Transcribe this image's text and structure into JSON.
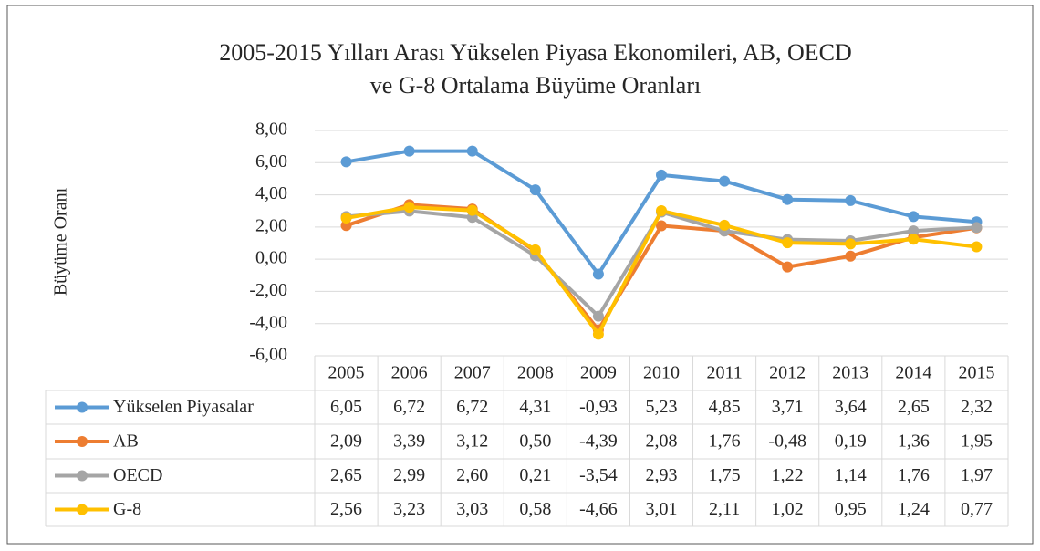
{
  "chart_data": {
    "type": "line",
    "title": "2005-2015 Yılları Arası Yükselen Piyasa Ekonomileri, AB, OECD",
    "subtitle": "ve G-8 Ortalama Büyüme Oranları",
    "y_label": "Büyüme Oranı",
    "categories": [
      "2005",
      "2006",
      "2007",
      "2008",
      "2009",
      "2010",
      "2011",
      "2012",
      "2013",
      "2014",
      "2015"
    ],
    "ylim": [
      -6,
      8
    ],
    "yticks": [
      {
        "value": -6,
        "label": "-6,00"
      },
      {
        "value": -4,
        "label": "-4,00"
      },
      {
        "value": -2,
        "label": "-2,00"
      },
      {
        "value": 0,
        "label": "0,00"
      },
      {
        "value": 2,
        "label": "2,00"
      },
      {
        "value": 4,
        "label": "4,00"
      },
      {
        "value": 6,
        "label": "6,00"
      },
      {
        "value": 8,
        "label": "8,00"
      }
    ],
    "grid": true,
    "series": [
      {
        "name": "Yükselen Piyasalar",
        "color": "#5b9bd5",
        "values": [
          6.05,
          6.72,
          6.72,
          4.31,
          -0.93,
          5.23,
          4.85,
          3.71,
          3.64,
          2.65,
          2.32
        ],
        "value_labels": [
          "6,05",
          "6,72",
          "6,72",
          "4,31",
          "-0,93",
          "5,23",
          "4,85",
          "3,71",
          "3,64",
          "2,65",
          "2,32"
        ]
      },
      {
        "name": "AB",
        "color": "#ed7d31",
        "values": [
          2.09,
          3.39,
          3.12,
          0.5,
          -4.39,
          2.08,
          1.76,
          -0.48,
          0.19,
          1.36,
          1.95
        ],
        "value_labels": [
          "2,09",
          "3,39",
          "3,12",
          "0,50",
          "-4,39",
          "2,08",
          "1,76",
          "-0,48",
          "0,19",
          "1,36",
          "1,95"
        ]
      },
      {
        "name": "OECD",
        "color": "#a5a5a5",
        "values": [
          2.65,
          2.99,
          2.6,
          0.21,
          -3.54,
          2.93,
          1.75,
          1.22,
          1.14,
          1.76,
          1.97
        ],
        "value_labels": [
          "2,65",
          "2,99",
          "2,60",
          "0,21",
          "-3,54",
          "2,93",
          "1,75",
          "1,22",
          "1,14",
          "1,76",
          "1,97"
        ]
      },
      {
        "name": "G-8",
        "color": "#ffc000",
        "values": [
          2.56,
          3.23,
          3.03,
          0.58,
          -4.66,
          3.01,
          2.11,
          1.02,
          0.95,
          1.24,
          0.77
        ],
        "value_labels": [
          "2,56",
          "3,23",
          "3,03",
          "0,58",
          "-4,66",
          "3,01",
          "2,11",
          "1,02",
          "0,95",
          "1,24",
          "0,77"
        ]
      }
    ]
  }
}
